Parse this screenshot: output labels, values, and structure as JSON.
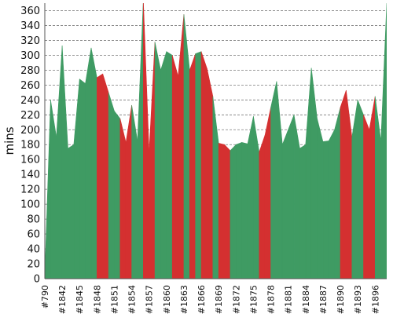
{
  "chart_data": {
    "type": "area",
    "title": "",
    "xlabel": "",
    "ylabel": "mins",
    "ylim": [
      0,
      370
    ],
    "y_ticks": [
      0,
      20,
      40,
      60,
      80,
      100,
      120,
      140,
      160,
      180,
      200,
      220,
      240,
      260,
      280,
      300,
      320,
      340,
      360
    ],
    "grid": "horizontal-dashed",
    "colors": {
      "normal": "#3f9b63",
      "highlight": "#d43030"
    },
    "x_tick_labels": [
      "#790",
      "#1842",
      "#1845",
      "#1848",
      "#1851",
      "#1854",
      "#1857",
      "#1860",
      "#1863",
      "#1866",
      "#1869",
      "#1872",
      "#1875",
      "#1878",
      "#1881",
      "#1884",
      "#1887",
      "#1890",
      "#1893",
      "#1896"
    ],
    "series": [
      {
        "name": "",
        "values": [
          5,
          240,
          190,
          313,
          175,
          180,
          268,
          262,
          310,
          270,
          275,
          250,
          225,
          215,
          183,
          233,
          185,
          375,
          170,
          318,
          280,
          305,
          300,
          272,
          355,
          280,
          302,
          305,
          282,
          245,
          182,
          180,
          172,
          180,
          183,
          181,
          218,
          170,
          193,
          230,
          265,
          180,
          200,
          220,
          175,
          180,
          283,
          215,
          184,
          185,
          200,
          230,
          253,
          190,
          240,
          220,
          200,
          245,
          185,
          370
        ],
        "highlight": [
          false,
          false,
          false,
          false,
          false,
          false,
          false,
          false,
          false,
          true,
          true,
          false,
          false,
          true,
          true,
          false,
          false,
          true,
          true,
          false,
          false,
          false,
          true,
          true,
          false,
          true,
          false,
          true,
          true,
          false,
          true,
          true,
          false,
          false,
          false,
          false,
          false,
          true,
          true,
          false,
          false,
          false,
          false,
          false,
          false,
          false,
          false,
          false,
          false,
          false,
          false,
          true,
          true,
          false,
          false,
          true,
          true,
          false,
          false,
          false
        ]
      }
    ]
  }
}
